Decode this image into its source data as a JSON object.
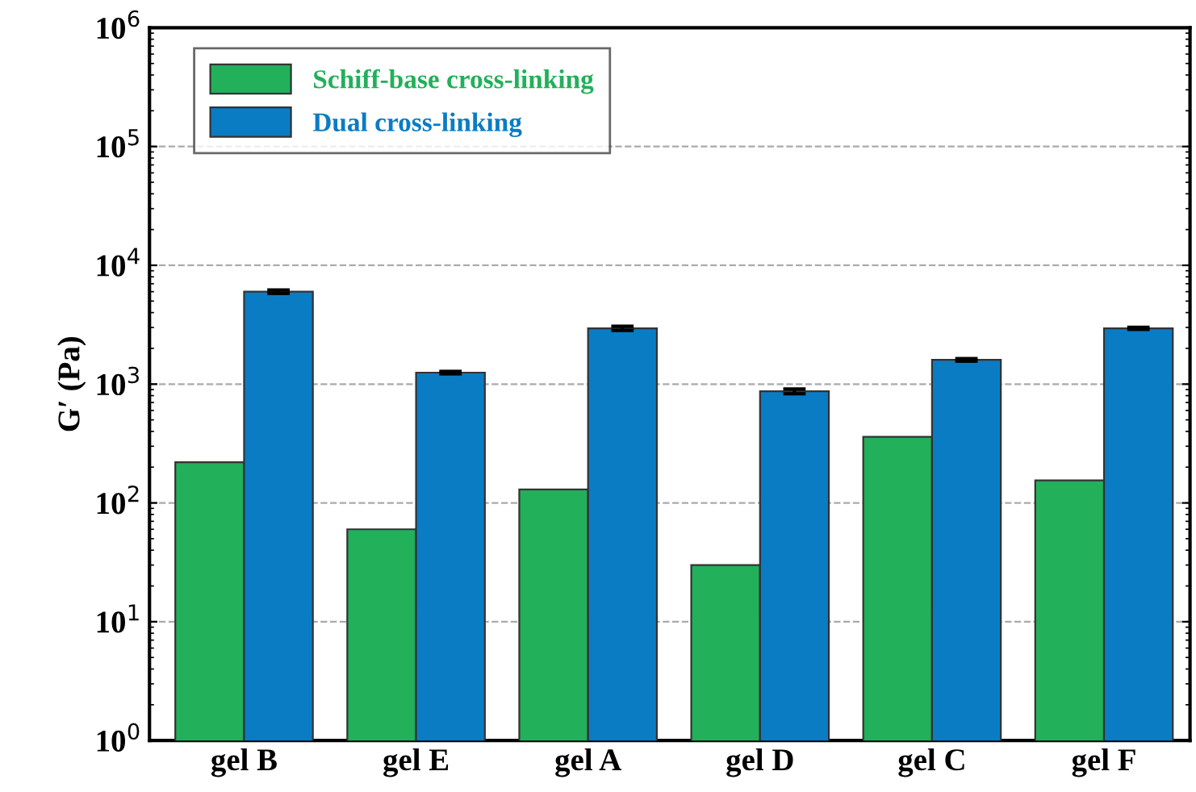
{
  "chart_data": {
    "type": "bar",
    "ylabel": "G′ (Pa)",
    "categories": [
      "gel B",
      "gel E",
      "gel A",
      "gel D",
      "gel C",
      "gel F"
    ],
    "series": [
      {
        "name": "Schiff-base cross-linking",
        "color": "#22b05a",
        "values": [
          220,
          60,
          130,
          30,
          360,
          155
        ]
      },
      {
        "name": "Dual cross-linking",
        "color": "#0a7cc4",
        "values": [
          6000,
          1250,
          2950,
          870,
          1600,
          2950
        ],
        "errors": [
          200,
          30,
          120,
          40,
          40,
          60
        ]
      }
    ],
    "log": "y",
    "ylim": [
      1,
      1000000
    ],
    "yticks": [
      {
        "value": 1,
        "label": "10$^{0}$"
      },
      {
        "value": 10,
        "label": "10$^{1}$"
      },
      {
        "value": 100,
        "label": "10$^{2}$"
      },
      {
        "value": 1000,
        "label": "10$^{3}$"
      },
      {
        "value": 10000,
        "label": "10$^{4}$"
      },
      {
        "value": 100000,
        "label": "10$^{5}$"
      },
      {
        "value": 1000000,
        "label": "10$^{6}$"
      }
    ],
    "grid": "y",
    "legend": "top left"
  }
}
